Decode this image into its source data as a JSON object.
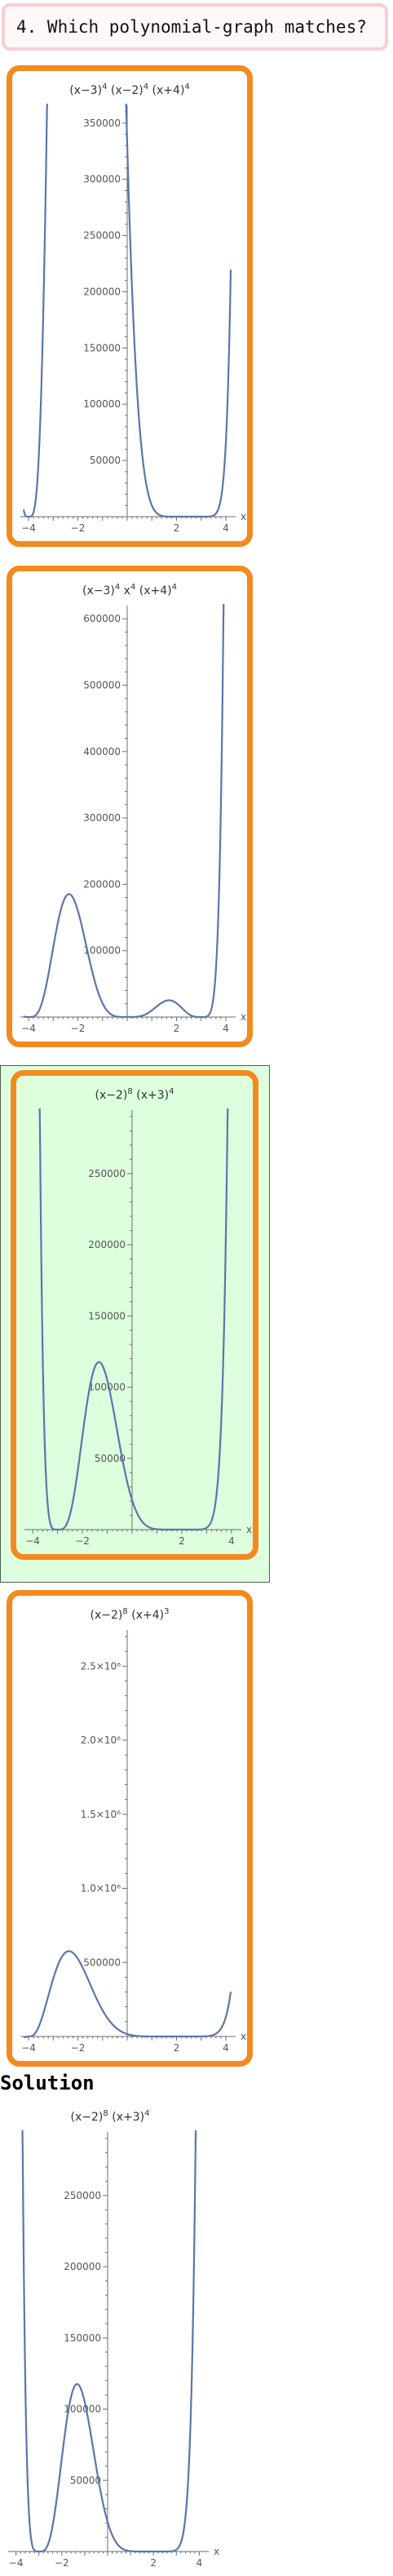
{
  "question": {
    "text": "4. Which polynomial-graph matches?"
  },
  "options": [
    {
      "title": {
        "b1": "(x−3)",
        "e1": "4",
        "b2": " (x−2)",
        "e2": "4",
        "b3": " (x+4)",
        "e3": "4"
      },
      "selected": false,
      "chart_data": {
        "type": "line",
        "function": "(x-3)^4 (x-2)^4 (x+4)^4",
        "xlabel": "x",
        "xlim": [
          -4.2,
          4.2
        ],
        "ylim": [
          0,
          360000
        ],
        "x_ticks": [
          -4,
          -2,
          2,
          4
        ],
        "y_ticks": [
          50000,
          100000,
          150000,
          200000,
          250000,
          300000,
          350000
        ],
        "y_tick_labels": [
          "50000",
          "100000",
          "150000",
          "200000",
          "250000",
          "300000",
          "350000"
        ]
      }
    },
    {
      "title": {
        "b1": "(x−3)",
        "e1": "4",
        "b2": " x",
        "e2": "4",
        "b3": " (x+4)",
        "e3": "4"
      },
      "selected": false,
      "chart_data": {
        "type": "line",
        "function": "(x-3)^4 x^4 (x+4)^4",
        "xlabel": "x",
        "xlim": [
          -4.2,
          4.2
        ],
        "ylim": [
          0,
          610000
        ],
        "x_ticks": [
          -4,
          -2,
          2,
          4
        ],
        "y_ticks": [
          100000,
          200000,
          300000,
          400000,
          500000,
          600000
        ],
        "y_tick_labels": [
          "100000",
          "200000",
          "300000",
          "400000",
          "500000",
          "600000"
        ]
      }
    },
    {
      "title": {
        "b1": "(x−2)",
        "e1": "8",
        "b2": " (x+3)",
        "e2": "4",
        "b3": "",
        "e3": ""
      },
      "selected": true,
      "chart_data": {
        "type": "line",
        "function": "(x-2)^8 (x+3)^4",
        "xlabel": "x",
        "xlim": [
          -4.2,
          4.2
        ],
        "ylim": [
          0,
          290000
        ],
        "x_ticks": [
          -4,
          -2,
          2,
          4
        ],
        "y_ticks": [
          50000,
          100000,
          150000,
          200000,
          250000
        ],
        "y_tick_labels": [
          "50000",
          "100000",
          "150000",
          "200000",
          "250000"
        ]
      }
    },
    {
      "title": {
        "b1": "(x−2)",
        "e1": "8",
        "b2": " (x+4)",
        "e2": "3",
        "b3": "",
        "e3": ""
      },
      "selected": false,
      "chart_data": {
        "type": "line",
        "function": "(x-2)^8 (x+4)^3",
        "xlabel": "x",
        "xlim": [
          -4.2,
          4.2
        ],
        "ylim": [
          0,
          2700000
        ],
        "x_ticks": [
          -4,
          -2,
          2,
          4
        ],
        "y_ticks": [
          500000,
          1000000,
          1500000,
          2000000,
          2500000
        ],
        "y_tick_labels": [
          "500000",
          "1.0×10⁶",
          "1.5×10⁶",
          "2.0×10⁶",
          "2.5×10⁶"
        ]
      }
    }
  ],
  "solution": {
    "heading": "Solution",
    "title": {
      "b1": "(x−2)",
      "e1": "8",
      "b2": " (x+3)",
      "e2": "4",
      "b3": "",
      "e3": ""
    },
    "chart_data": {
      "type": "line",
      "function": "(x-2)^8 (x+3)^4",
      "xlabel": "x",
      "xlim": [
        -4.2,
        4.2
      ],
      "ylim": [
        0,
        290000
      ],
      "x_ticks": [
        -4,
        -2,
        2,
        4
      ],
      "y_ticks": [
        50000,
        100000,
        150000,
        200000,
        250000
      ],
      "y_tick_labels": [
        "50000",
        "100000",
        "150000",
        "200000",
        "250000"
      ]
    }
  },
  "colors": {
    "option_border": "#f28a1f",
    "selected_bg": "#ddffdd",
    "curve": "#5b76ab",
    "question_border": "#f6cfd3"
  }
}
